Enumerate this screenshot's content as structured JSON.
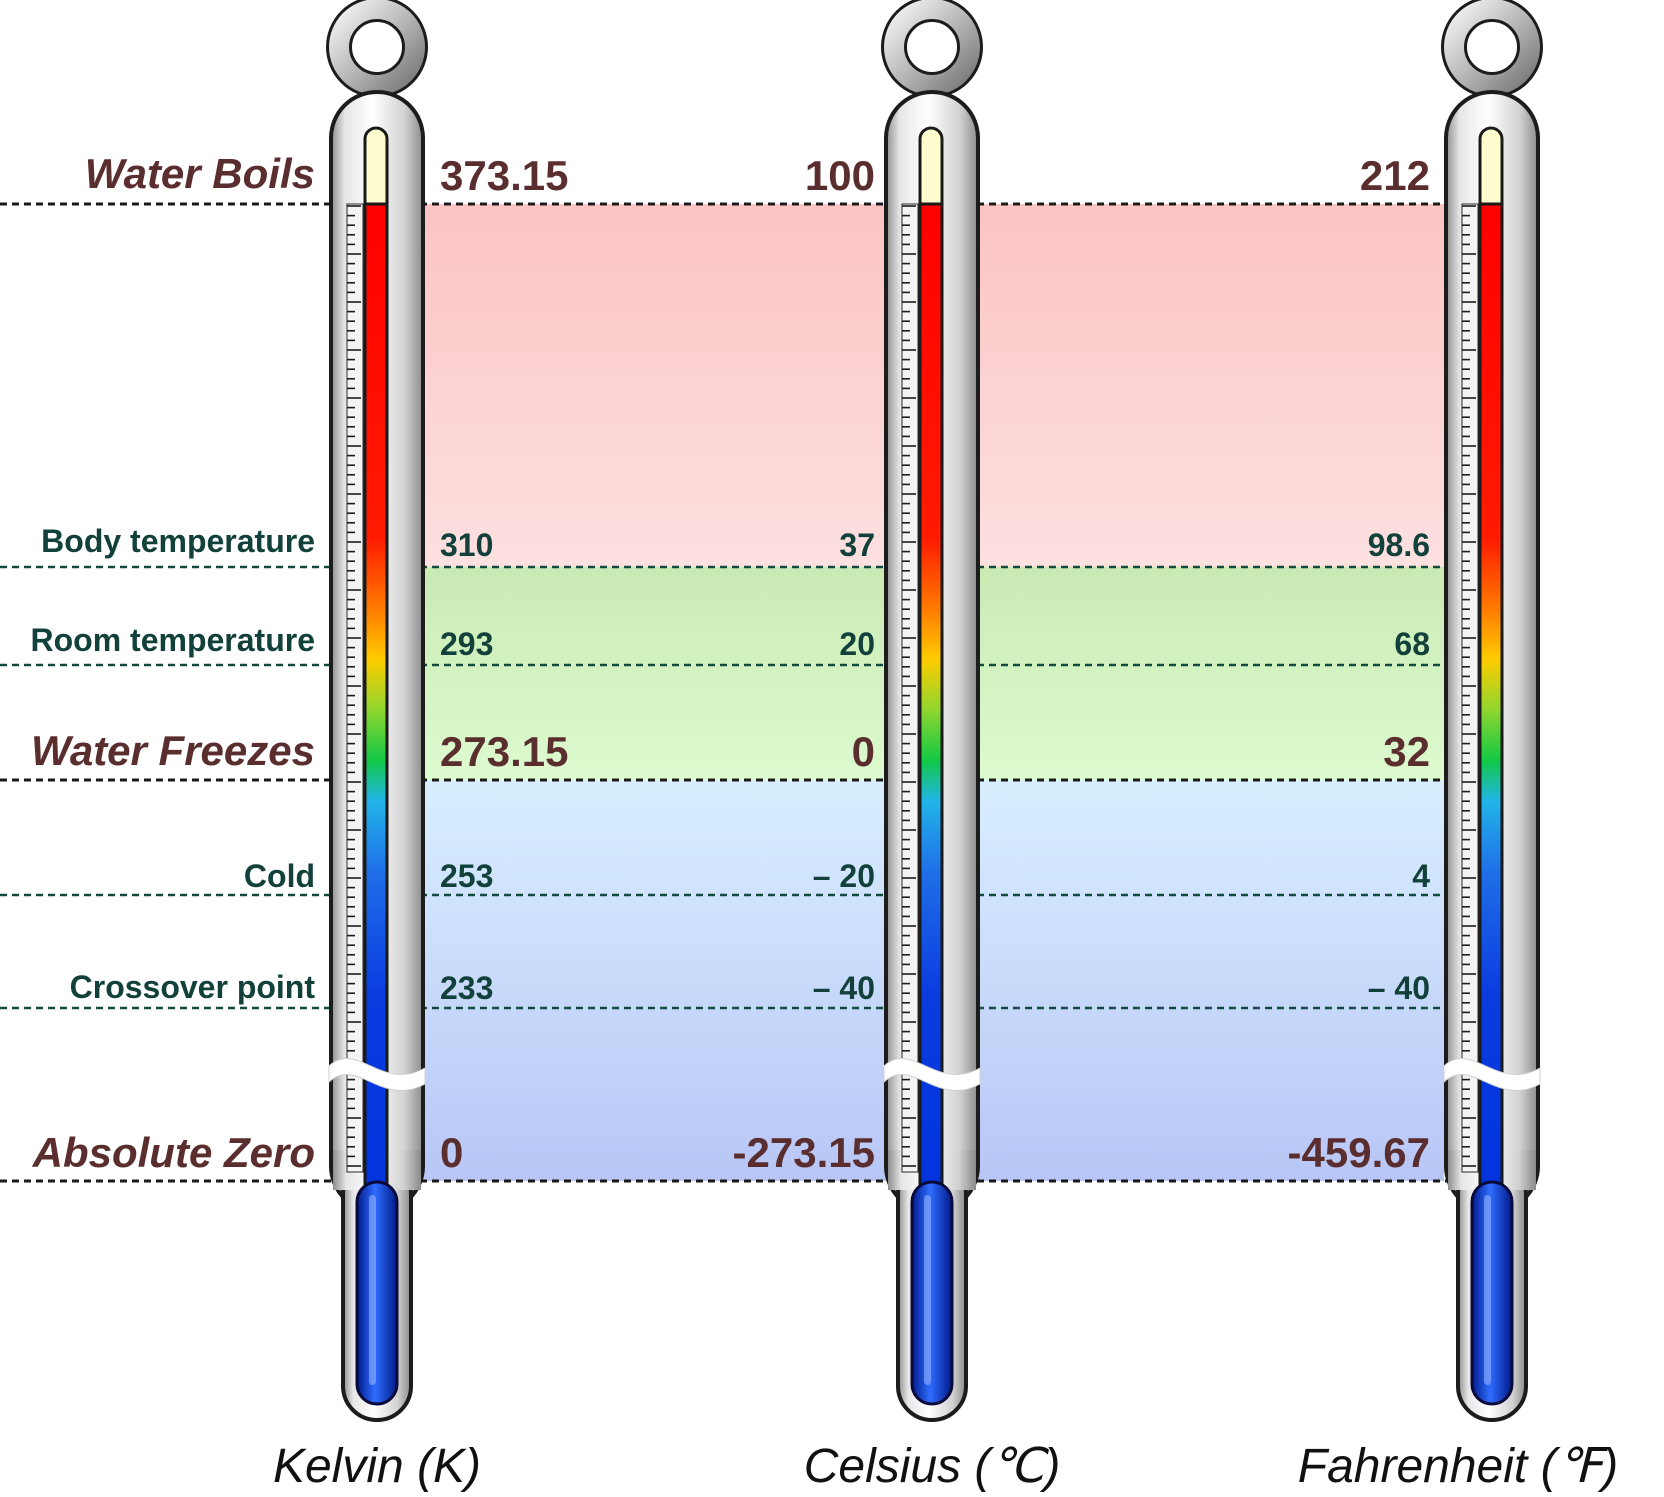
{
  "scales": [
    {
      "id": "kelvin",
      "name": "Kelvin (K)"
    },
    {
      "id": "celsius",
      "name": "Celsius (℃)"
    },
    {
      "id": "fahrenheit",
      "name": "Fahrenheit (℉)"
    }
  ],
  "points": [
    {
      "id": "water-boils",
      "label": "Water Boils",
      "style": "major",
      "values": [
        "373.15",
        "100",
        "212"
      ]
    },
    {
      "id": "body-temperature",
      "label": "Body temperature",
      "style": "minor",
      "values": [
        "310",
        "37",
        "98.6"
      ]
    },
    {
      "id": "room-temperature",
      "label": "Room temperature",
      "style": "minor",
      "values": [
        "293",
        "20",
        "68"
      ]
    },
    {
      "id": "water-freezes",
      "label": "Water Freezes",
      "style": "major",
      "values": [
        "273.15",
        "0",
        "32"
      ]
    },
    {
      "id": "cold",
      "label": "Cold",
      "style": "minor",
      "values": [
        "253",
        "– 20",
        "4"
      ]
    },
    {
      "id": "crossover-point",
      "label": "Crossover point",
      "style": "minor",
      "values": [
        "233",
        "– 40",
        "– 40"
      ]
    },
    {
      "id": "absolute-zero",
      "label": "Absolute Zero",
      "style": "major",
      "values": [
        "0",
        "-273.15",
        "-459.67"
      ]
    }
  ],
  "colors": {
    "hot_band": "#fcc7c7",
    "mild_band": "#cdeeb8",
    "cold_band": "#bcc8f7",
    "label_major": "#5a2e2e",
    "label_minor": "#12403a",
    "mercury_top": "#ff0000",
    "mercury_bottom": "#0033dd"
  }
}
